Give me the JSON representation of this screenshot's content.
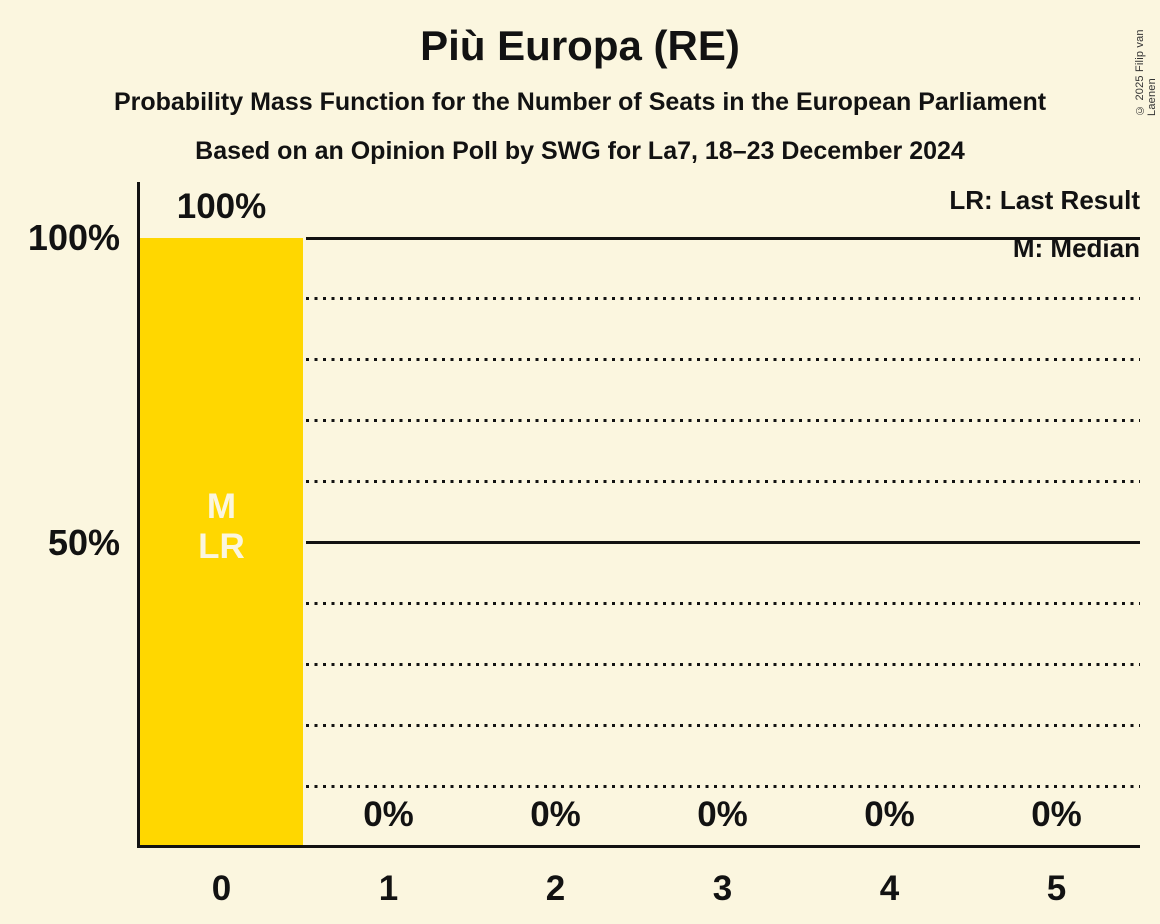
{
  "header": {
    "title": "Più Europa (RE)",
    "subtitle_line1": "Probability Mass Function for the Number of Seats in the European Parliament",
    "subtitle_line2": "Based on an Opinion Poll by SWG for La7, 18–23 December 2024"
  },
  "legend": {
    "last_result": "LR: Last Result",
    "median": "M: Median"
  },
  "copyright": "© 2025 Filip van Laenen",
  "colors": {
    "background": "#FBF6DF",
    "bar": "#FFD700",
    "text": "#121212",
    "bar_annotation_text": "#FBF6DF"
  },
  "chart_data": {
    "type": "bar",
    "title": "Più Europa (RE)",
    "categories": [
      "0",
      "1",
      "2",
      "3",
      "4",
      "5"
    ],
    "values": [
      100,
      0,
      0,
      0,
      0,
      0
    ],
    "value_labels": [
      "100%",
      "0%",
      "0%",
      "0%",
      "0%",
      "0%"
    ],
    "annotations": [
      [
        "M",
        "LR"
      ],
      [],
      [],
      [],
      [],
      []
    ],
    "y_axis_ticks": [
      {
        "value": 100,
        "label": "100%"
      },
      {
        "value": 50,
        "label": "50%"
      }
    ],
    "ylim": [
      0,
      100
    ],
    "gridlines": {
      "solid_at": [
        100,
        50
      ],
      "dotted_at": [
        90,
        80,
        70,
        60,
        40,
        30,
        20,
        10
      ]
    },
    "median_at_category": "0",
    "last_result_at_category": "0"
  }
}
